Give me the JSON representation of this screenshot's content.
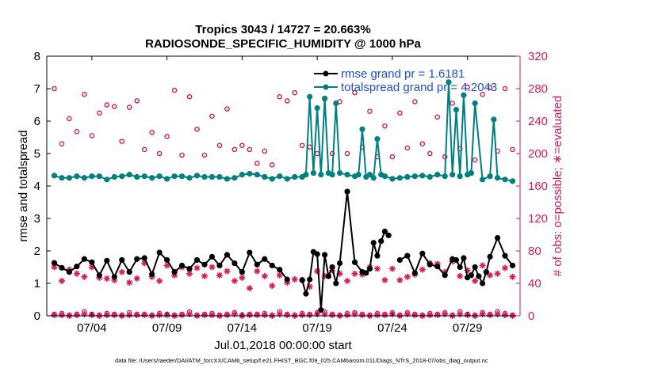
{
  "chart_data": {
    "type": "line",
    "title_line1": "Tropics 3043 / 14727 = 20.663%",
    "title_line2": "RADIOSONDE_SPECIFIC_HUMIDITY @ 1000 hPa",
    "xlabel": "Jul.01,2018 00:00:00 start",
    "ylabel_left": "rmse and totalspread",
    "ylabel_right": "# of obs: o=possible; ∗=evaluated",
    "footer": "data file: /Users/raeder/DAI/ATM_forcXX/CAM6_setup/f.e21.FHIST_BGC.f09_025.CAM6assim.011/Diags_NTrS_2018-07/obs_diag_output.nc",
    "xlim": [
      0.5,
      32.0
    ],
    "ylim_left": [
      0,
      8
    ],
    "ylim_right": [
      0,
      320
    ],
    "x_ticks": [
      3.5,
      8.5,
      13.5,
      18.5,
      23.5,
      28.5
    ],
    "x_tick_labels": [
      "07/04",
      "07/09",
      "07/14",
      "07/19",
      "07/24",
      "07/29"
    ],
    "y_left_ticks": [
      0,
      1,
      2,
      3,
      4,
      5,
      6,
      7,
      8
    ],
    "y_left_tick_labels": [
      "0",
      "1",
      "2",
      "3",
      "4",
      "5",
      "6",
      "7",
      "8"
    ],
    "y_right_ticks": [
      0,
      40,
      80,
      120,
      160,
      200,
      240,
      280,
      320
    ],
    "y_right_tick_labels": [
      "0",
      "40",
      "80",
      "120",
      "160",
      "200",
      "240",
      "280",
      "320"
    ],
    "colors": {
      "rmse": "#000000",
      "spread": "#008080",
      "obs": "#d61a5e",
      "axis_left": "#000000",
      "axis_right": "#d61a5e",
      "legend_text": "#1f4ed8"
    },
    "legend": [
      {
        "label": "rmse grand pr = 1.6181",
        "series": "rmse"
      },
      {
        "label": "totalspread grand pr = 4.2043",
        "series": "spread"
      }
    ],
    "series": [
      {
        "name": "rmse",
        "x": [
          1.0,
          1.5,
          2.0,
          2.5,
          3.0,
          3.5,
          4.0,
          4.5,
          5.0,
          5.5,
          6.0,
          6.5,
          7.0,
          7.5,
          8.0,
          8.5,
          9.0,
          9.5,
          10.0,
          10.5,
          11.0,
          11.5,
          12.0,
          12.5,
          13.0,
          13.5,
          14.0,
          14.5,
          15.0,
          15.5,
          16.0,
          16.5,
          17.0,
          17.5,
          17.75,
          18.0,
          18.25,
          18.5,
          18.75,
          19.0,
          19.25,
          19.5,
          19.75,
          20.0,
          20.5,
          21.0,
          21.5,
          21.75,
          22.0,
          22.25,
          22.5,
          22.75,
          23.0,
          23.25,
          23.5,
          24.0,
          24.5,
          25.0,
          25.5,
          26.0,
          26.5,
          27.0,
          27.5,
          27.75,
          28.0,
          28.25,
          28.5,
          28.75,
          29.0,
          29.25,
          29.5,
          29.75,
          30.0,
          30.5,
          31.0,
          31.5
        ],
        "values": [
          1.63,
          1.48,
          1.35,
          1.52,
          1.75,
          1.65,
          1.25,
          1.7,
          1.2,
          1.72,
          1.35,
          1.75,
          1.78,
          1.28,
          1.95,
          1.72,
          1.35,
          1.55,
          1.45,
          1.72,
          1.58,
          1.82,
          1.55,
          1.88,
          1.62,
          1.35,
          1.95,
          1.58,
          1.75,
          1.55,
          1.42,
          1.12,
          null,
          1.1,
          0.68,
          1.12,
          1.97,
          1.9,
          0.18,
          1.88,
          1.22,
          1.5,
          1.0,
          1.62,
          3.83,
          1.65,
          1.35,
          1.32,
          1.45,
          2.25,
          1.85,
          2.3,
          2.6,
          2.48,
          null,
          1.72,
          1.85,
          1.32,
          1.92,
          1.58,
          1.52,
          1.25,
          1.75,
          1.72,
          1.5,
          1.78,
          1.18,
          1.25,
          1.5,
          1.22,
          1.0,
          1.35,
          1.82,
          2.4,
          1.85,
          1.55
        ]
      },
      {
        "name": "totalspread",
        "x": [
          1.0,
          1.5,
          2.0,
          2.5,
          3.0,
          3.5,
          4.0,
          4.5,
          5.0,
          5.5,
          6.0,
          6.5,
          7.0,
          7.5,
          8.0,
          8.5,
          9.0,
          9.5,
          10.0,
          10.5,
          11.0,
          11.5,
          12.0,
          12.5,
          13.0,
          13.5,
          14.0,
          14.5,
          15.0,
          15.5,
          16.0,
          16.5,
          17.0,
          17.5,
          17.75,
          18.0,
          18.25,
          18.5,
          18.75,
          19.0,
          19.25,
          19.5,
          19.75,
          20.0,
          20.5,
          21.0,
          21.25,
          21.5,
          21.75,
          22.0,
          22.25,
          22.5,
          22.75,
          23.0,
          23.5,
          24.0,
          24.5,
          25.0,
          25.5,
          26.0,
          26.5,
          27.0,
          27.25,
          27.5,
          27.75,
          28.0,
          28.25,
          28.5,
          28.75,
          29.0,
          29.5,
          30.0,
          30.25,
          30.5,
          31.0,
          31.5
        ],
        "values": [
          4.32,
          4.25,
          4.25,
          4.3,
          4.25,
          4.3,
          4.3,
          4.2,
          4.28,
          4.3,
          4.35,
          4.28,
          4.3,
          4.25,
          4.3,
          4.22,
          4.3,
          4.3,
          4.25,
          4.32,
          4.28,
          4.28,
          4.28,
          4.22,
          4.25,
          4.35,
          4.38,
          4.35,
          4.28,
          4.22,
          4.3,
          4.22,
          4.28,
          4.28,
          4.35,
          6.75,
          4.4,
          6.4,
          4.35,
          6.7,
          4.4,
          4.35,
          6.55,
          4.4,
          4.35,
          4.3,
          4.35,
          5.75,
          4.28,
          4.35,
          4.25,
          5.45,
          4.35,
          4.3,
          4.22,
          4.25,
          4.28,
          4.3,
          4.32,
          4.28,
          4.35,
          4.3,
          7.2,
          4.35,
          6.35,
          4.3,
          6.8,
          4.35,
          4.4,
          6.55,
          4.2,
          4.3,
          6.05,
          4.25,
          4.2,
          4.15
        ]
      },
      {
        "name": "obs_possible",
        "x": [
          1,
          1.5,
          2,
          2.5,
          3,
          3.5,
          4,
          4.5,
          5,
          5.5,
          6,
          6.5,
          7,
          7.5,
          8,
          8.5,
          9,
          9.5,
          10,
          10.5,
          11,
          11.5,
          12,
          12.5,
          13,
          13.5,
          14,
          14.5,
          15,
          15.5,
          16,
          16.5,
          17,
          17.5,
          18,
          18.5,
          19,
          19.5,
          20,
          20.5,
          21,
          21.5,
          22,
          22.5,
          23,
          23.5,
          24,
          24.5,
          25,
          25.5,
          26,
          26.5,
          27,
          27.5,
          28,
          28.5,
          29,
          29.5,
          30,
          30.5,
          31,
          31.5
        ],
        "values": [
          280,
          212,
          243,
          227,
          273,
          222,
          250,
          260,
          258,
          215,
          257,
          265,
          205,
          226,
          200,
          221,
          278,
          198,
          270,
          230,
          198,
          246,
          210,
          255,
          205,
          210,
          205,
          188,
          203,
          186,
          270,
          265,
          275,
          210,
          208,
          200,
          267,
          200,
          264,
          200,
          275,
          208,
          252,
          196,
          234,
          196,
          250,
          207,
          264,
          212,
          200,
          245,
          196,
          262,
          206,
          282,
          192,
          273,
          281,
          203,
          280,
          205
        ]
      },
      {
        "name": "obs_possible_bottom",
        "x": [
          1,
          1.5,
          2,
          2.5,
          3,
          3.5,
          4,
          4.5,
          5,
          5.5,
          6,
          6.5,
          7,
          7.5,
          8,
          8.5,
          9,
          9.5,
          10,
          10.5,
          11,
          11.5,
          12,
          12.5,
          13,
          13.5,
          14,
          14.5,
          15,
          15.5,
          16,
          16.5,
          17,
          17.5,
          18,
          18.5,
          19,
          19.5,
          20,
          20.5,
          21,
          21.5,
          22,
          22.5,
          23,
          23.5,
          24,
          24.5,
          25,
          25.5,
          26,
          26.5,
          27,
          27.5,
          28,
          28.5,
          29,
          29.5,
          30,
          30.5,
          31,
          31.5
        ],
        "values": [
          2,
          3,
          1,
          2,
          5,
          2,
          1,
          3,
          2,
          1,
          4,
          2,
          2,
          1,
          3,
          2,
          1,
          2,
          5,
          1,
          2,
          3,
          1,
          2,
          4,
          1,
          2,
          2,
          3,
          1,
          5,
          2,
          1,
          3,
          2,
          4,
          5,
          2,
          1,
          3,
          4,
          2,
          1,
          3,
          2,
          4,
          1,
          4,
          2,
          1,
          3,
          2,
          4,
          1,
          5,
          2,
          1,
          4,
          2,
          5,
          3,
          1
        ]
      },
      {
        "name": "obs_evaluated",
        "x": [
          1,
          1.5,
          2,
          2.5,
          3,
          3.5,
          4,
          4.5,
          5,
          5.5,
          6,
          6.5,
          7,
          7.5,
          8,
          8.5,
          9,
          9.5,
          10,
          10.5,
          11,
          11.5,
          12,
          12.5,
          13,
          13.5,
          14,
          14.5,
          15,
          15.5,
          16,
          16.5,
          17,
          17.5,
          18,
          18.5,
          19,
          19.5,
          20,
          20.5,
          21,
          21.5,
          22,
          22.5,
          23,
          23.5,
          24,
          24.5,
          25,
          25.5,
          26,
          26.5,
          27,
          27.5,
          28,
          28.5,
          29,
          29.5,
          30,
          30.5,
          31,
          31.5
        ],
        "values": [
          60,
          43,
          57,
          52,
          48,
          60,
          47,
          46,
          44,
          54,
          41,
          46,
          65,
          48,
          43,
          62,
          50,
          60,
          52,
          59,
          49,
          60,
          50,
          55,
          43,
          47,
          34,
          55,
          49,
          37,
          50,
          41,
          45,
          44,
          36,
          55,
          49,
          56,
          52,
          43,
          52,
          51,
          60,
          58,
          44,
          58,
          44,
          48,
          51,
          57,
          65,
          64,
          54,
          67,
          49,
          56,
          43,
          62,
          50,
          52,
          59,
          48
        ]
      },
      {
        "name": "obs_evaluated_bottom",
        "x": [
          1,
          1.5,
          2,
          2.5,
          3,
          3.5,
          4,
          4.5,
          5,
          5.5,
          6,
          6.5,
          7,
          7.5,
          8,
          8.5,
          9,
          9.5,
          10,
          10.5,
          11,
          11.5,
          12,
          12.5,
          13,
          13.5,
          14,
          14.5,
          15,
          15.5,
          16,
          16.5,
          17,
          17.5,
          18,
          18.5,
          19,
          19.5,
          20,
          20.5,
          21,
          21.5,
          22,
          22.5,
          23,
          23.5,
          24,
          24.5,
          25,
          25.5,
          26,
          26.5,
          27,
          27.5,
          28,
          28.5,
          29,
          29.5,
          30,
          30.5,
          31,
          31.5
        ],
        "values": [
          1,
          1,
          0,
          1,
          2,
          1,
          0,
          1,
          1,
          0,
          1,
          1,
          1,
          0,
          1,
          1,
          0,
          1,
          2,
          0,
          1,
          1,
          0,
          1,
          2,
          0,
          1,
          1,
          1,
          0,
          2,
          1,
          0,
          1,
          1,
          2,
          2,
          1,
          0,
          1,
          2,
          1,
          0,
          1,
          1,
          2,
          0,
          2,
          1,
          0,
          1,
          1,
          2,
          0,
          2,
          1,
          0,
          2,
          1,
          2,
          1,
          0
        ]
      }
    ]
  }
}
